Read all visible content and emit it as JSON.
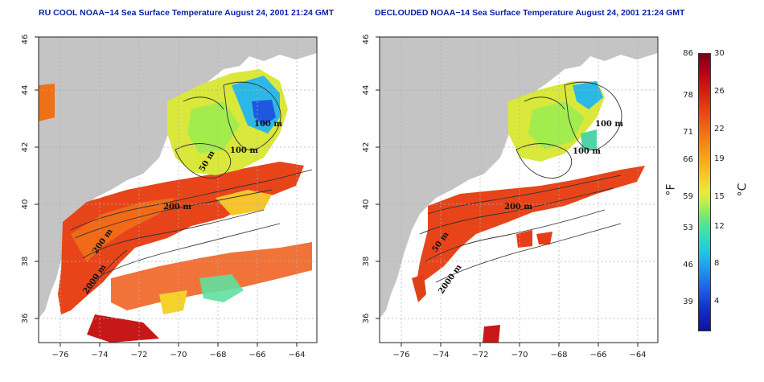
{
  "panels": {
    "left_title": "RU COOL NOAA−14 Sea Surface Temperature August 24, 2001 21:24 GMT",
    "right_title": "DECLOUDED NOAA−14 Sea Surface Temperature August 24, 2001 21:24 GMT"
  },
  "axes": {
    "lon_ticks": [
      "−76",
      "−74",
      "−72",
      "−70",
      "−68",
      "−66",
      "−64"
    ],
    "lat_ticks": [
      "36",
      "38",
      "40",
      "42",
      "44",
      "46"
    ]
  },
  "contour_labels": {
    "left": [
      "100 m",
      "100 m",
      "50 m",
      "200 m",
      "200 m",
      "2000 m"
    ],
    "right": [
      "100 m",
      "100 m",
      "200 m",
      "50 m",
      "2000 m"
    ]
  },
  "colorbar": {
    "fahrenheit_ticks": [
      "86",
      "78",
      "71",
      "66",
      "59",
      "53",
      "46",
      "39"
    ],
    "celsius_ticks": [
      "30",
      "26",
      "22",
      "19",
      "15",
      "12",
      "8",
      "4"
    ],
    "fahrenheit_unit": "°F",
    "celsius_unit": "°C",
    "colors": [
      "#7a0010",
      "#d6200f",
      "#f27a12",
      "#f5cf2a",
      "#7eea6a",
      "#21c2e6",
      "#1d60e8",
      "#0c12a0"
    ]
  },
  "colors": {
    "land": "#c4c4c4",
    "title": "#0a1fa8"
  }
}
